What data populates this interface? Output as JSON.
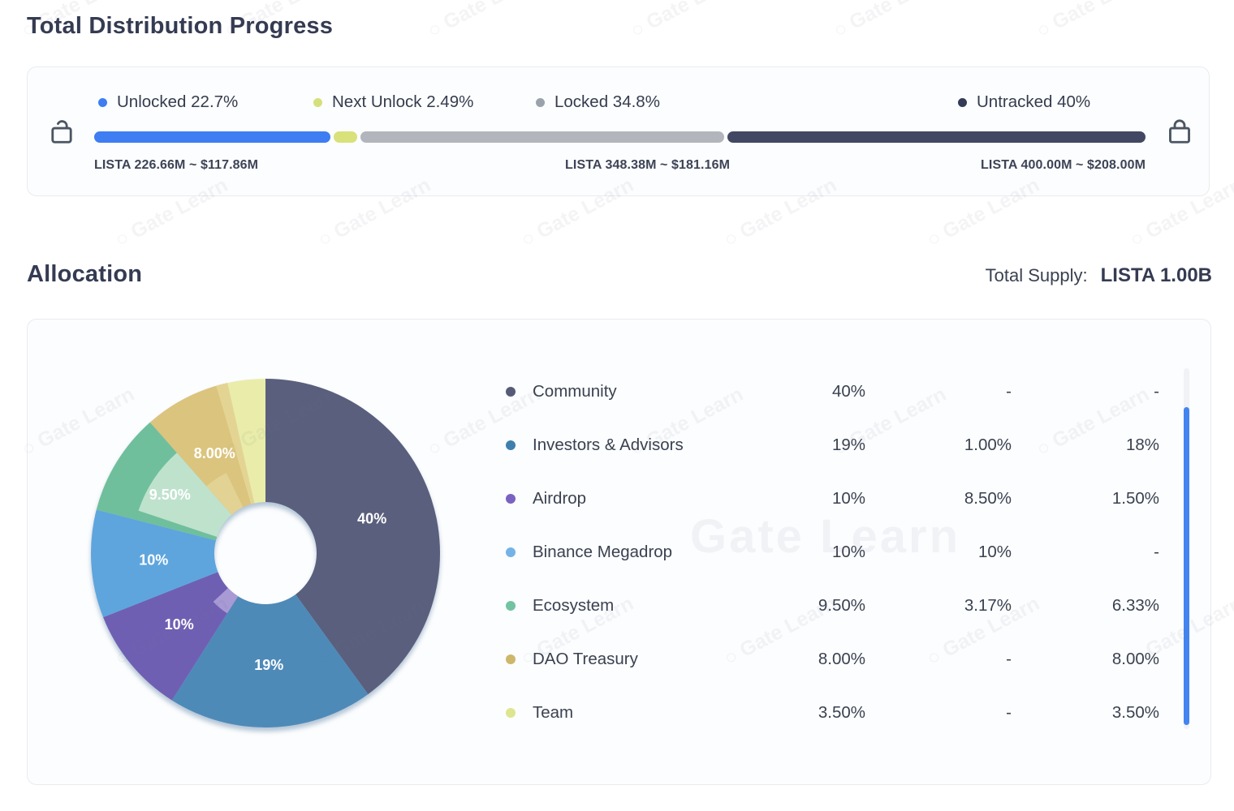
{
  "page": {
    "title_progress": "Total Distribution Progress",
    "title_allocation": "Allocation",
    "total_supply_label": "Total Supply:",
    "total_supply_value": "LISTA 1.00B"
  },
  "watermark": {
    "text": "Gate Learn"
  },
  "progress": {
    "segments": [
      {
        "name": "unlocked",
        "label": "Unlocked 22.7%",
        "pct": 22.7,
        "dot_color": "#3e7df2",
        "bar_color": "#3e7df2"
      },
      {
        "name": "next-unlock",
        "label": "Next Unlock 2.49%",
        "pct": 2.49,
        "dot_color": "#d6e07a",
        "bar_color": "#d8e17a"
      },
      {
        "name": "locked",
        "label": "Locked 34.8%",
        "pct": 34.8,
        "dot_color": "#9aa2ab",
        "bar_color": "#b2b6bc"
      },
      {
        "name": "untracked",
        "label": "Untracked 40%",
        "pct": 40,
        "dot_color": "#343b57",
        "bar_color": "#424863"
      }
    ],
    "amounts": [
      {
        "text": "LISTA 226.66M ~ $117.86M"
      },
      {
        "text": "LISTA 348.38M ~ $181.16M"
      },
      {
        "text": "LISTA 400.00M ~ $208.00M"
      }
    ]
  },
  "chart_data": {
    "type": "pie",
    "title": "Allocation",
    "unit": "%",
    "total": 100,
    "donut": true,
    "hole_radius_px": 63,
    "outer_radius_px": 215,
    "legend_position": "right",
    "columns": [
      "total",
      "unlocked",
      "locked"
    ],
    "slices": [
      {
        "label": "Community",
        "value": 40,
        "display": "40%",
        "total": "40%",
        "unlocked": "-",
        "locked": "-",
        "color": "#5a5f7d",
        "dot_color": "#565b78"
      },
      {
        "label": "Investors & Advisors",
        "value": 19,
        "display": "19%",
        "total": "19%",
        "unlocked": "1.00%",
        "locked": "18%",
        "color": "#4e8ab8",
        "dot_color": "#3f7fae"
      },
      {
        "label": "Airdrop",
        "value": 10,
        "display": "10%",
        "total": "10%",
        "unlocked": "8.50%",
        "locked": "1.50%",
        "color": "#6f5fb3",
        "dot_color": "#7a63c0"
      },
      {
        "label": "Binance Megadrop",
        "value": 10,
        "display": "10%",
        "total": "10%",
        "unlocked": "10%",
        "locked": "-",
        "color": "#5ea5dd",
        "dot_color": "#74b3e8"
      },
      {
        "label": "Ecosystem",
        "value": 9.5,
        "display": "9.50%",
        "total": "9.50%",
        "unlocked": "3.17%",
        "locked": "6.33%",
        "color": "#6fbf9d",
        "dot_color": "#72c3a2"
      },
      {
        "label": "DAO Treasury",
        "value": 8,
        "display": "8.00%",
        "total": "8.00%",
        "unlocked": "-",
        "locked": "8.00%",
        "color": "#dbc47d",
        "dot_color": "#cdb86a"
      },
      {
        "label": "Team",
        "value": 3.5,
        "display": "",
        "total": "3.50%",
        "unlocked": "-",
        "locked": "3.50%",
        "color": "#e9eda9",
        "dot_color": "#dde58f"
      }
    ],
    "shading": [
      {
        "slice": "Airdrop",
        "from_deg": 212.4,
        "to_deg": 227,
        "inner_r": 63,
        "outer_r": 88,
        "color": "#a89ad5"
      },
      {
        "slice": "Ecosystem",
        "from_deg": 288.5,
        "to_deg": 318.6,
        "inner_r": 63,
        "outer_r": 165,
        "color": "#bfe2cd"
      },
      {
        "slice": "DAO Treasury",
        "from_deg": 318.6,
        "to_deg": 334,
        "inner_r": 63,
        "outer_r": 110,
        "color": "#e2d293"
      },
      {
        "slice": "DAO Treasury",
        "from_deg": 343.6,
        "to_deg": 347.4,
        "inner_r": 63,
        "outer_r": 215,
        "color": "#e4d494"
      }
    ],
    "label_radius_px": 138
  }
}
